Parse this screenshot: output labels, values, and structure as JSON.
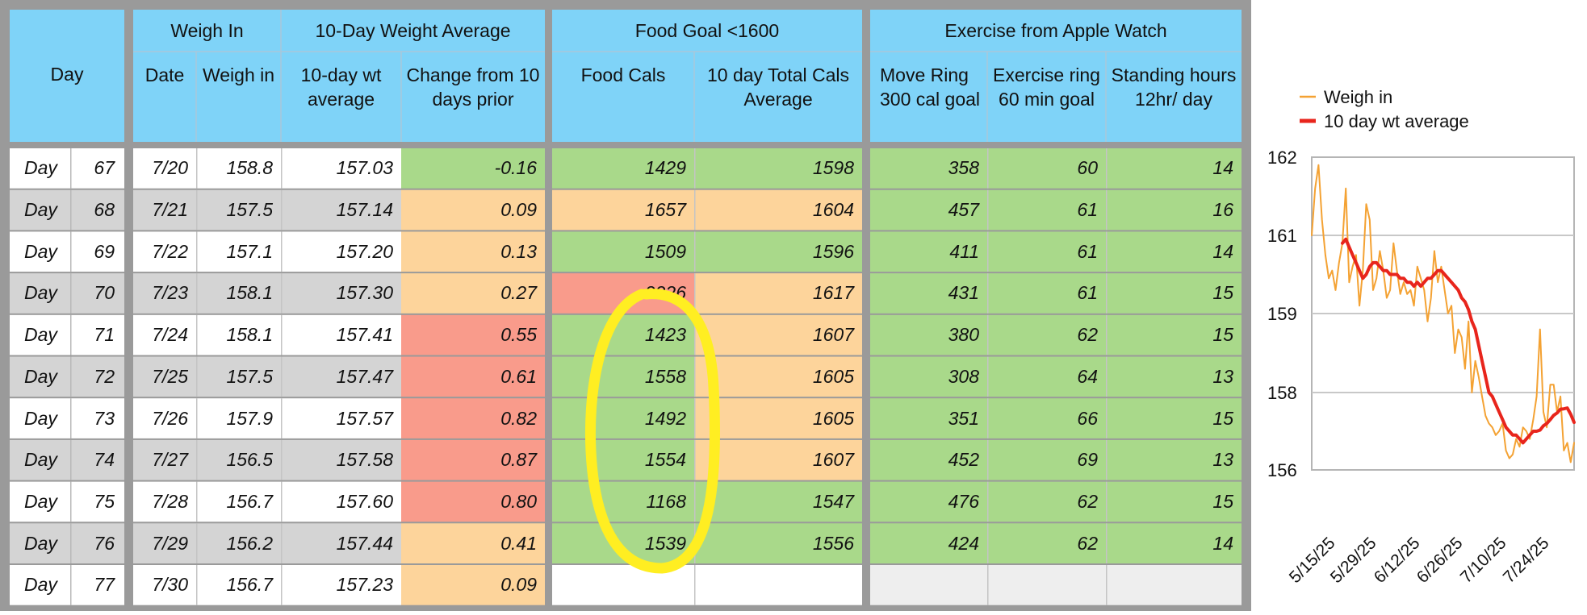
{
  "headers": {
    "day": "Day",
    "weigh_in": "Weigh In",
    "avg_group": "10-Day Weight Average",
    "food_group": "Food Goal <1600",
    "exercise_group": "Exercise from Apple Watch",
    "date": "Date",
    "weigh": "Weigh in",
    "avg": "10-day wt average",
    "change": "Change from 10 days prior",
    "food": "Food Cals",
    "total": "10 day Total Cals Average",
    "move": "Move Ring 300 cal goal",
    "exercise": "Exercise ring 60 min goal",
    "standing": "Standing hours 12hr/ day"
  },
  "colors": {
    "header": "#7fd3f8",
    "green": "#a9d98a",
    "orange": "#fdd49b",
    "red": "#f99b8b",
    "gray_row": "#d4d4d4",
    "frame": "#9a9a9a",
    "annotation": "#ffee22",
    "chart_weigh": "#f4a233",
    "chart_avg": "#e8251c"
  },
  "rows": [
    {
      "label": "Day",
      "num": "67",
      "date": "7/20",
      "weigh": "158.8",
      "avg": "157.03",
      "change": "-0.16",
      "food": "1429",
      "total": "1598",
      "move": "358",
      "exercise": "60",
      "standing": "14",
      "change_color": "green",
      "food_color": "green",
      "total_color": "green",
      "exercise_colors": "green"
    },
    {
      "label": "Day",
      "num": "68",
      "date": "7/21",
      "weigh": "157.5",
      "avg": "157.14",
      "change": "0.09",
      "food": "1657",
      "total": "1604",
      "move": "457",
      "exercise": "61",
      "standing": "16",
      "change_color": "orange",
      "food_color": "orange",
      "total_color": "orange",
      "exercise_colors": "green"
    },
    {
      "label": "Day",
      "num": "69",
      "date": "7/22",
      "weigh": "157.1",
      "avg": "157.20",
      "change": "0.13",
      "food": "1509",
      "total": "1596",
      "move": "411",
      "exercise": "61",
      "standing": "14",
      "change_color": "orange",
      "food_color": "green",
      "total_color": "green",
      "exercise_colors": "green"
    },
    {
      "label": "Day",
      "num": "70",
      "date": "7/23",
      "weigh": "158.1",
      "avg": "157.30",
      "change": "0.27",
      "food": "2226",
      "total": "1617",
      "move": "431",
      "exercise": "61",
      "standing": "15",
      "change_color": "orange",
      "food_color": "red",
      "total_color": "orange",
      "exercise_colors": "green"
    },
    {
      "label": "Day",
      "num": "71",
      "date": "7/24",
      "weigh": "158.1",
      "avg": "157.41",
      "change": "0.55",
      "food": "1423",
      "total": "1607",
      "move": "380",
      "exercise": "62",
      "standing": "15",
      "change_color": "red",
      "food_color": "green",
      "total_color": "orange",
      "exercise_colors": "green"
    },
    {
      "label": "Day",
      "num": "72",
      "date": "7/25",
      "weigh": "157.5",
      "avg": "157.47",
      "change": "0.61",
      "food": "1558",
      "total": "1605",
      "move": "308",
      "exercise": "64",
      "standing": "13",
      "change_color": "red",
      "food_color": "green",
      "total_color": "orange",
      "exercise_colors": "green"
    },
    {
      "label": "Day",
      "num": "73",
      "date": "7/26",
      "weigh": "157.9",
      "avg": "157.57",
      "change": "0.82",
      "food": "1492",
      "total": "1605",
      "move": "351",
      "exercise": "66",
      "standing": "15",
      "change_color": "red",
      "food_color": "green",
      "total_color": "orange",
      "exercise_colors": "green"
    },
    {
      "label": "Day",
      "num": "74",
      "date": "7/27",
      "weigh": "156.5",
      "avg": "157.58",
      "change": "0.87",
      "food": "1554",
      "total": "1607",
      "move": "452",
      "exercise": "69",
      "standing": "13",
      "change_color": "red",
      "food_color": "green",
      "total_color": "orange",
      "exercise_colors": "green"
    },
    {
      "label": "Day",
      "num": "75",
      "date": "7/28",
      "weigh": "156.7",
      "avg": "157.60",
      "change": "0.80",
      "food": "1168",
      "total": "1547",
      "move": "476",
      "exercise": "62",
      "standing": "15",
      "change_color": "red",
      "food_color": "green",
      "total_color": "green",
      "exercise_colors": "green"
    },
    {
      "label": "Day",
      "num": "76",
      "date": "7/29",
      "weigh": "156.2",
      "avg": "157.44",
      "change": "0.41",
      "food": "1539",
      "total": "1556",
      "move": "424",
      "exercise": "62",
      "standing": "14",
      "change_color": "orange",
      "food_color": "green",
      "total_color": "green",
      "exercise_colors": "green"
    },
    {
      "label": "Day",
      "num": "77",
      "date": "7/30",
      "weigh": "156.7",
      "avg": "157.23",
      "change": "0.09",
      "food": "",
      "total": "",
      "move": "",
      "exercise": "",
      "standing": "",
      "change_color": "orange",
      "food_color": "white",
      "total_color": "white",
      "exercise_colors": "light"
    }
  ],
  "chart_data": {
    "type": "line",
    "title": "",
    "xlabel": "",
    "ylabel": "",
    "ylim": [
      156,
      162
    ],
    "y_tick_labels": [
      "156",
      "158",
      "159",
      "161",
      "162"
    ],
    "x_tick_labels": [
      "5/15/25",
      "5/29/25",
      "6/12/25",
      "6/26/25",
      "7/10/25",
      "7/24/25"
    ],
    "x_range_days": [
      0,
      77
    ],
    "legend_position": "top",
    "grid": true,
    "series": [
      {
        "name": "Weigh in",
        "color": "#f4a233",
        "width": 2,
        "x": [
          0,
          1,
          2,
          3,
          4,
          5,
          6,
          7,
          8,
          9,
          10,
          11,
          12,
          13,
          14,
          15,
          16,
          17,
          18,
          19,
          20,
          21,
          22,
          23,
          24,
          25,
          26,
          27,
          28,
          29,
          30,
          31,
          32,
          33,
          34,
          35,
          36,
          37,
          38,
          39,
          40,
          41,
          42,
          43,
          44,
          45,
          46,
          47,
          48,
          49,
          50,
          51,
          52,
          53,
          54,
          55,
          56,
          57,
          58,
          59,
          60,
          61,
          62,
          63,
          64,
          65,
          66,
          67,
          68,
          69,
          70,
          71,
          72,
          73,
          74,
          75,
          76,
          77
        ],
        "y": [
          161,
          161.6,
          161.9,
          161.2,
          160.5,
          159.9,
          160.1,
          159.6,
          160.3,
          160.8,
          161.6,
          159.8,
          160.2,
          160.5,
          159.2,
          160.1,
          161.4,
          161.2,
          159.6,
          159.9,
          160.6,
          160.1,
          159.4,
          159.6,
          160.8,
          160.1,
          159.5,
          159.8,
          159.5,
          159.6,
          159.2,
          160.2,
          159.9,
          159.6,
          158.9,
          159.4,
          160.6,
          159.8,
          160.2,
          159.6,
          159.0,
          159.2,
          158.5,
          158.8,
          158.7,
          158.3,
          158.9,
          158.0,
          158.4,
          158.2,
          157.9,
          157.4,
          157.2,
          157.1,
          156.9,
          157.0,
          157.2,
          156.5,
          156.3,
          156.4,
          156.8,
          156.6,
          157.1,
          157.0,
          156.8,
          157.3,
          157.9,
          158.8,
          157.5,
          157.1,
          158.1,
          158.1,
          157.5,
          157.9,
          156.5,
          156.7,
          156.2,
          156.7
        ]
      },
      {
        "name": "10 day wt average",
        "color": "#e8251c",
        "width": 4,
        "x": [
          9,
          10,
          11,
          12,
          13,
          14,
          15,
          16,
          17,
          18,
          19,
          20,
          21,
          22,
          23,
          24,
          25,
          26,
          27,
          28,
          29,
          30,
          31,
          32,
          33,
          34,
          35,
          36,
          37,
          38,
          39,
          40,
          41,
          42,
          43,
          44,
          45,
          46,
          47,
          48,
          49,
          50,
          51,
          52,
          53,
          54,
          55,
          56,
          57,
          58,
          59,
          60,
          61,
          62,
          63,
          64,
          65,
          66,
          67,
          68,
          69,
          70,
          71,
          72,
          73,
          74,
          75,
          76,
          77
        ],
        "y": [
          160.8,
          160.9,
          160.7,
          160.5,
          160.3,
          160.1,
          159.9,
          160.0,
          160.2,
          160.3,
          160.3,
          160.2,
          160.1,
          160.1,
          160.0,
          160.0,
          160.0,
          159.9,
          159.9,
          159.8,
          159.8,
          159.7,
          159.8,
          159.7,
          159.8,
          159.9,
          159.9,
          160.0,
          160.1,
          160.1,
          160.0,
          159.9,
          159.8,
          159.7,
          159.6,
          159.4,
          159.3,
          159.1,
          158.9,
          158.8,
          158.6,
          158.4,
          158.2,
          158.0,
          157.9,
          157.7,
          157.5,
          157.3,
          157.1,
          157.0,
          156.9,
          156.9,
          156.8,
          156.7,
          156.8,
          156.9,
          157.0,
          157.0,
          157.03,
          157.14,
          157.2,
          157.3,
          157.41,
          157.47,
          157.57,
          157.58,
          157.6,
          157.44,
          157.23
        ]
      }
    ]
  }
}
